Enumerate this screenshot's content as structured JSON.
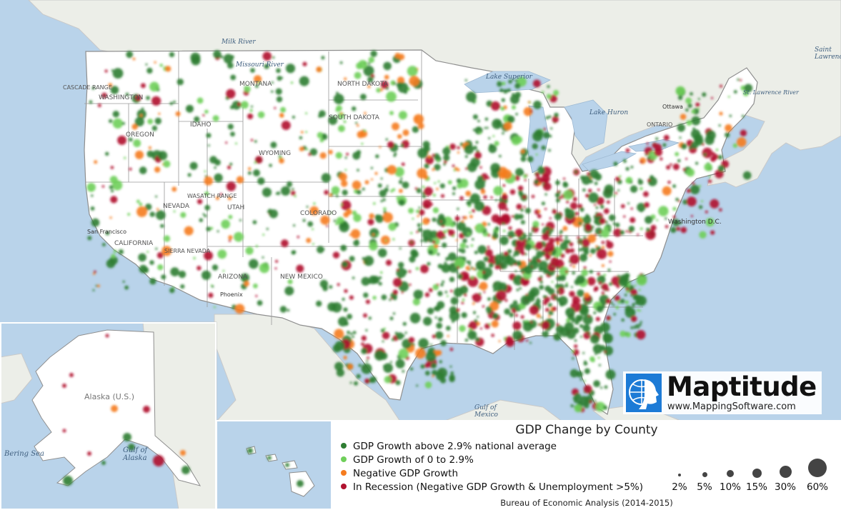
{
  "legend": {
    "title": "GDP Change by County",
    "items": [
      {
        "label": "GDP Growth above 2.9% national average",
        "color": "#2e7d32"
      },
      {
        "label": "GDP Growth of 0 to 2.9%",
        "color": "#6fcf5a"
      },
      {
        "label": "Negative GDP Growth",
        "color": "#f57c1f"
      },
      {
        "label": "In Recession (Negative GDP Growth & Unemployment >5%)",
        "color": "#b0122f"
      }
    ],
    "sizes": [
      "2%",
      "5%",
      "10%",
      "15%",
      "30%",
      "60%"
    ],
    "source": "Bureau of Economic Analysis (2014-2015)"
  },
  "logo": {
    "name": "Maptitude",
    "url": "www.MappingSoftware.com"
  },
  "map_labels": {
    "alaska": "Alaska (U.S.)",
    "bering_sea": "Bering Sea",
    "gulf_of_alaska": "Gulf of Alaska",
    "gulf_of_mexico": "Gulf of Mexico",
    "lake_superior": "Lake Superior",
    "lake_huron": "Lake Huron",
    "milk_river": "Milk River",
    "missouri_river": "Missouri River",
    "washington_dc": "Washington D.C.",
    "washington": "WASHINGTON",
    "oregon": "OREGON",
    "nevada": "NEVADA",
    "california": "CALIFORNIA",
    "arizona": "ARIZONA",
    "new_mexico": "NEW MEXICO",
    "wyoming": "WYOMING",
    "north_dakota": "NORTH DAKOTA",
    "south_dakota": "SOUTH DAKOTA",
    "montana": "MONTANA",
    "colorado": "COLORADO",
    "utah": "UTAH",
    "idaho": "IDAHO",
    "cascade_range": "CASCADE RANGE",
    "wasatch_range": "WASATCH RANGE",
    "sierra_nevada": "SIERRA NEVADA",
    "san_francisco": "San Francisco",
    "phoenix": "Phoenix",
    "ottawa": "Ottawa",
    "ontario": "ONTARIO",
    "saint_lawrence": "Saint Lawrence",
    "st_lawrence_river": "St. Lawrence River"
  },
  "colors": {
    "ocean": "#b9d3ea",
    "land": "#eef0ea",
    "us": "#ffffff",
    "border": "#9a9a9a",
    "green_dark": "#2e7d32",
    "green_light": "#6fcf5a",
    "orange": "#f57c1f",
    "red": "#b0122f"
  }
}
